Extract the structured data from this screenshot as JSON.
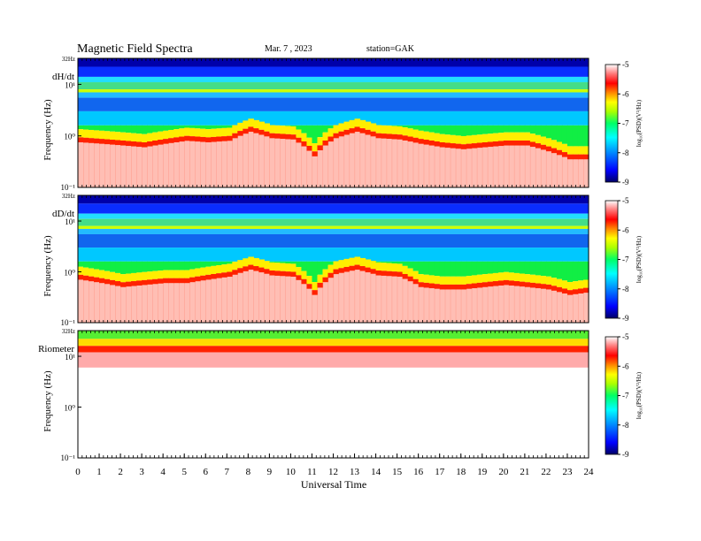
{
  "header": {
    "title": "Magnetic  Field  Spectra",
    "date": "Mar. 7  , 2023",
    "station": "station=GAK"
  },
  "x_axis": {
    "label": "Universal  Time",
    "ticks": [
      "0",
      "1",
      "2",
      "3",
      "4",
      "5",
      "6",
      "7",
      "8",
      "9",
      "10",
      "11",
      "12",
      "13",
      "14",
      "15",
      "16",
      "17",
      "18",
      "19",
      "20",
      "21",
      "22",
      "23",
      "24"
    ]
  },
  "colorbar": {
    "label": "log₁₀(PSD)(V²/Hz)",
    "ticks": [
      "-5",
      "-6",
      "-7",
      "-8",
      "-9"
    ],
    "range": [
      -9,
      -5
    ],
    "colors": [
      "#000066",
      "#0000ff",
      "#0088ff",
      "#00ffff",
      "#00ff66",
      "#66ff00",
      "#ffff00",
      "#ff8800",
      "#ff0000",
      "#ffffff"
    ]
  },
  "panels": [
    {
      "name": "dH/dt",
      "ylabel": "Frequency  (Hz)",
      "yticks": [
        "32Hz",
        "10¹",
        "10⁰",
        "10⁻¹"
      ]
    },
    {
      "name": "dD/dt",
      "ylabel": "Frequency  (Hz)",
      "yticks": [
        "32Hz",
        "10¹",
        "10⁰",
        "10⁻¹"
      ]
    },
    {
      "name": "Riometer",
      "ylabel": "Frequency  (Hz)",
      "yticks": [
        "32Hz",
        "10¹",
        "10⁰",
        "10⁻¹"
      ]
    }
  ],
  "chart_data": {
    "type": "heatmap",
    "title": "Magnetic  Field  Spectra",
    "xlabel": "Universal  Time",
    "xlim": [
      0,
      24
    ],
    "ylabel": "Frequency  (Hz)",
    "ylim_hz": [
      0.1,
      32
    ],
    "y_scale": "log",
    "color_scale": "log10(PSD)(V^2/Hz)",
    "clim": [
      -9,
      -5
    ],
    "series": [
      {
        "name": "dH/dt",
        "cutoff_hz_by_hour": [
          0.75,
          0.7,
          0.65,
          0.6,
          0.7,
          0.8,
          0.75,
          0.8,
          1.2,
          0.9,
          0.85,
          0.4,
          0.9,
          1.2,
          0.9,
          0.85,
          0.7,
          0.6,
          0.55,
          0.6,
          0.65,
          0.65,
          0.5,
          0.35,
          0.35
        ]
      },
      {
        "name": "dD/dt",
        "cutoff_hz_by_hour": [
          0.7,
          0.6,
          0.5,
          0.55,
          0.6,
          0.6,
          0.7,
          0.8,
          1.1,
          0.85,
          0.8,
          0.35,
          0.9,
          1.1,
          0.85,
          0.8,
          0.5,
          0.45,
          0.45,
          0.5,
          0.55,
          0.5,
          0.45,
          0.35,
          0.4
        ]
      },
      {
        "name": "Riometer",
        "cutoff_hz_by_hour": [
          12,
          12,
          12,
          12,
          12,
          12,
          12,
          12,
          12,
          12,
          12,
          12,
          12,
          12,
          12,
          12,
          12,
          12,
          12,
          12,
          12,
          12,
          12,
          12,
          12
        ]
      }
    ]
  }
}
